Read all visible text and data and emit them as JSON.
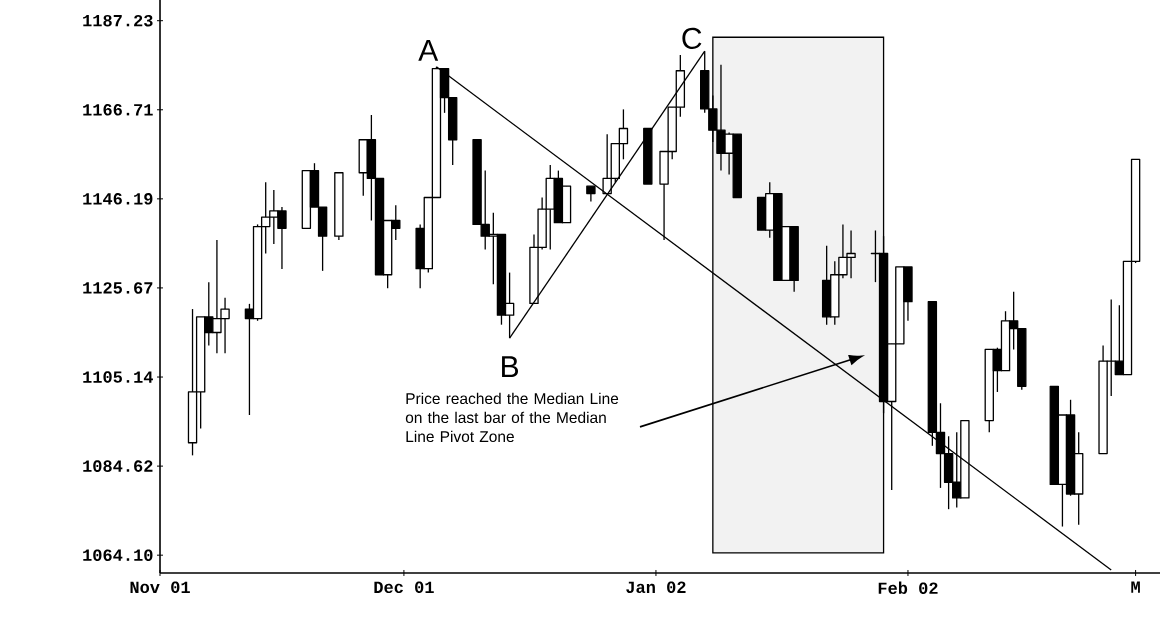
{
  "chart_data": {
    "type": "candlestick",
    "x": [
      "2001-11-05",
      "2001-11-06",
      "2001-11-07",
      "2001-11-08",
      "2001-11-09",
      "2001-11-12",
      "2001-11-13",
      "2001-11-14",
      "2001-11-15",
      "2001-11-16",
      "2001-11-19",
      "2001-11-20",
      "2001-11-21",
      "2001-11-23",
      "2001-11-26",
      "2001-11-27",
      "2001-11-28",
      "2001-11-29",
      "2001-11-30",
      "2001-12-03",
      "2001-12-04",
      "2001-12-05",
      "2001-12-06",
      "2001-12-07",
      "2001-12-10",
      "2001-12-11",
      "2001-12-12",
      "2001-12-13",
      "2001-12-14",
      "2001-12-17",
      "2001-12-18",
      "2001-12-19",
      "2001-12-20",
      "2001-12-21",
      "2001-12-24",
      "2001-12-26",
      "2001-12-27",
      "2001-12-28",
      "2001-12-31",
      "2002-01-02",
      "2002-01-03",
      "2002-01-04",
      "2002-01-07",
      "2002-01-08",
      "2002-01-09",
      "2002-01-10",
      "2002-01-11",
      "2002-01-14",
      "2002-01-15",
      "2002-01-16",
      "2002-01-17",
      "2002-01-18",
      "2002-01-22",
      "2002-01-23",
      "2002-01-24",
      "2002-01-25",
      "2002-01-28",
      "2002-01-29",
      "2002-01-30",
      "2002-01-31",
      "2002-02-01",
      "2002-02-04",
      "2002-02-05",
      "2002-02-06",
      "2002-02-07",
      "2002-02-08",
      "2002-02-11",
      "2002-02-12",
      "2002-02-13",
      "2002-02-14",
      "2002-02-15",
      "2002-02-19",
      "2002-02-20",
      "2002-02-21",
      "2002-02-22",
      "2002-02-25",
      "2002-02-26",
      "2002-02-27",
      "2002-02-28",
      "2002-03-01"
    ],
    "ohlc": [
      [
        1090,
        1120.8,
        1087.1,
        1101.7
      ],
      [
        1101.7,
        1119,
        1093.3,
        1119
      ],
      [
        1119,
        1127,
        1112.4,
        1115.4
      ],
      [
        1115.4,
        1136.7,
        1110.6,
        1118.6
      ],
      [
        1118.6,
        1123.4,
        1110.6,
        1120.8
      ],
      [
        1120.8,
        1122,
        1096.4,
        1118.6
      ],
      [
        1118.6,
        1140.3,
        1118.1,
        1139.8
      ],
      [
        1139.8,
        1150,
        1133.6,
        1142
      ],
      [
        1142,
        1148.2,
        1135.8,
        1143.4
      ],
      [
        1143.4,
        1144.3,
        1130,
        1139.4
      ],
      [
        1139.4,
        1152.7,
        1139.4,
        1152.7
      ],
      [
        1152.7,
        1154.4,
        1144.3,
        1144.3
      ],
      [
        1144.3,
        1144.3,
        1129.6,
        1137.6
      ],
      [
        1137.6,
        1152.2,
        1136.7,
        1152.2
      ],
      [
        1152.2,
        1159.8,
        1146.9,
        1159.8
      ],
      [
        1159.8,
        1165.5,
        1141.2,
        1150.9
      ],
      [
        1150.9,
        1150.9,
        1128.7,
        1128.7
      ],
      [
        1128.7,
        1141.2,
        1125.6,
        1141.2
      ],
      [
        1141.2,
        1144.7,
        1136.7,
        1139.4
      ],
      [
        1139.4,
        1140.3,
        1125.6,
        1130.1
      ],
      [
        1130.1,
        1146.5,
        1129.2,
        1146.5
      ],
      [
        1146.5,
        1176.6,
        1146.5,
        1176.2
      ],
      [
        1176.2,
        1176.2,
        1166,
        1169.5
      ],
      [
        1169.5,
        1169.5,
        1154,
        1159.8
      ],
      [
        1159.8,
        1159.8,
        1140.3,
        1140.3
      ],
      [
        1140.3,
        1152.7,
        1134.5,
        1137.6
      ],
      [
        1137.6,
        1143,
        1126.5,
        1138
      ],
      [
        1138,
        1138,
        1117.2,
        1119.4
      ],
      [
        1119.4,
        1129.2,
        1114.1,
        1122.1
      ],
      [
        1122.1,
        1138,
        1122.1,
        1135
      ],
      [
        1135,
        1146.5,
        1134.5,
        1143.8
      ],
      [
        1143.8,
        1154,
        1134.5,
        1150.9
      ],
      [
        1150.9,
        1152.7,
        1140.7,
        1140.7
      ],
      [
        1140.7,
        1149.1,
        1140.7,
        1149.1
      ],
      [
        1149.1,
        1149.1,
        1145.6,
        1147.4
      ],
      [
        1147.4,
        1161.1,
        1147.4,
        1150.9
      ],
      [
        1150.9,
        1158.9,
        1150,
        1158.9
      ],
      [
        1158.9,
        1166.8,
        1155.3,
        1162.4
      ],
      [
        1162.4,
        1162.4,
        1149.6,
        1149.6
      ],
      [
        1149.6,
        1157.1,
        1136.7,
        1157.1
      ],
      [
        1157.1,
        1167.3,
        1155.3,
        1167.3
      ],
      [
        1167.3,
        1179.3,
        1165.1,
        1175.7
      ],
      [
        1175.7,
        1180.2,
        1166,
        1166.9
      ],
      [
        1166.9,
        1170,
        1159.3,
        1162
      ],
      [
        1162,
        1177.1,
        1152.7,
        1156.7
      ],
      [
        1156.7,
        1161.5,
        1151.8,
        1161.1
      ],
      [
        1161.1,
        1161.1,
        1146.5,
        1146.5
      ],
      [
        1146.5,
        1146.5,
        1139,
        1139
      ],
      [
        1139,
        1150,
        1137.2,
        1147.4
      ],
      [
        1147.4,
        1147.4,
        1127.4,
        1127.4
      ],
      [
        1127.4,
        1139.8,
        1127.4,
        1139.8
      ],
      [
        1139.8,
        1139.8,
        1124.8,
        1127.4
      ],
      [
        1127.4,
        1135.4,
        1117.2,
        1119
      ],
      [
        1119,
        1131.8,
        1117.2,
        1128.7
      ],
      [
        1128.7,
        1140.3,
        1127.9,
        1132.7
      ],
      [
        1132.7,
        1138.9,
        1127.9,
        1133.6
      ],
      [
        1133.6,
        1138.9,
        1127,
        1133.6
      ],
      [
        1133.6,
        1137.6,
        1096.8,
        1099.5
      ],
      [
        1099.5,
        1112.8,
        1079.1,
        1112.8
      ],
      [
        1112.8,
        1130.5,
        1112.8,
        1130.5
      ],
      [
        1130.5,
        1130.5,
        1118.1,
        1122.5
      ],
      [
        1122.5,
        1122.5,
        1089.3,
        1092.4
      ],
      [
        1092.4,
        1099.1,
        1079.6,
        1087.5
      ],
      [
        1087.5,
        1091.5,
        1074.7,
        1080.9
      ],
      [
        1080.9,
        1092.4,
        1075.1,
        1077.3
      ],
      [
        1077.3,
        1095.1,
        1077.3,
        1095.1
      ],
      [
        1095.1,
        1111.5,
        1092.4,
        1111.5
      ],
      [
        1111.5,
        1111.9,
        1101.7,
        1106.6
      ],
      [
        1106.6,
        1120.3,
        1106.6,
        1118.1
      ],
      [
        1118.1,
        1124.8,
        1111.5,
        1116.3
      ],
      [
        1116.3,
        1116.3,
        1102.2,
        1103
      ],
      [
        1103,
        1103,
        1080.4,
        1080.4
      ],
      [
        1080.4,
        1096.4,
        1070.7,
        1096.4
      ],
      [
        1096.4,
        1099.9,
        1077.8,
        1078.2
      ],
      [
        1078.2,
        1092.4,
        1071.1,
        1087.5
      ],
      [
        1087.5,
        1112.4,
        1087.5,
        1108.8
      ],
      [
        1108.8,
        1123,
        1100.8,
        1108.8
      ],
      [
        1108.8,
        1121.7,
        1105.7,
        1105.7
      ],
      [
        1105.7,
        1131.8,
        1105.7,
        1131.8
      ],
      [
        1131.8,
        1155.3,
        1131.4,
        1155.3
      ]
    ],
    "color": "#000000",
    "series": [
      {
        "type": "line",
        "color": "#000000",
        "x": [
          "2001-12-05",
          "2002-02-26"
        ],
        "values": [
          1176.6,
          1060.7
        ]
      },
      {
        "type": "line",
        "color": "#000000",
        "x": [
          "2001-12-14",
          "2002-01-07"
        ],
        "values": [
          1114.1,
          1180.2
        ]
      }
    ],
    "bands": [
      {
        "axis": "x",
        "from": "2002-01-08",
        "to": "2002-01-29",
        "color": "#000000"
      }
    ],
    "annotations": [
      {
        "text": "A",
        "x": "2001-12-05",
        "y": 1176.6
      },
      {
        "text": "B",
        "x": "2001-12-14",
        "y": 1114.1
      },
      {
        "text": "C",
        "x": "2002-01-07",
        "y": 1180.2
      },
      "Price reached the Median Line on the last bar of the Median Line Pivot Zone"
    ],
    "xlim": [
      "2001-11-01",
      "2002-03-04"
    ],
    "xticks": [
      {
        "value": "2001-11-01",
        "label": "Nov 01"
      },
      {
        "value": "2001-12-01",
        "label": "Dec 01"
      },
      {
        "value": "2002-01-01",
        "label": "Jan 02"
      },
      {
        "value": "2002-02-01",
        "label": "Feb 02"
      },
      {
        "value": "2002-03-01",
        "label": "M"
      }
    ],
    "ylim": [
      1060,
      1192
    ],
    "yticks": [
      {
        "value": 1064.1,
        "label": "1064.10"
      },
      1084.62,
      1105.14,
      1125.67,
      1146.19,
      1166.71,
      1187.23
    ],
    "grid": false,
    "legend": false
  }
}
